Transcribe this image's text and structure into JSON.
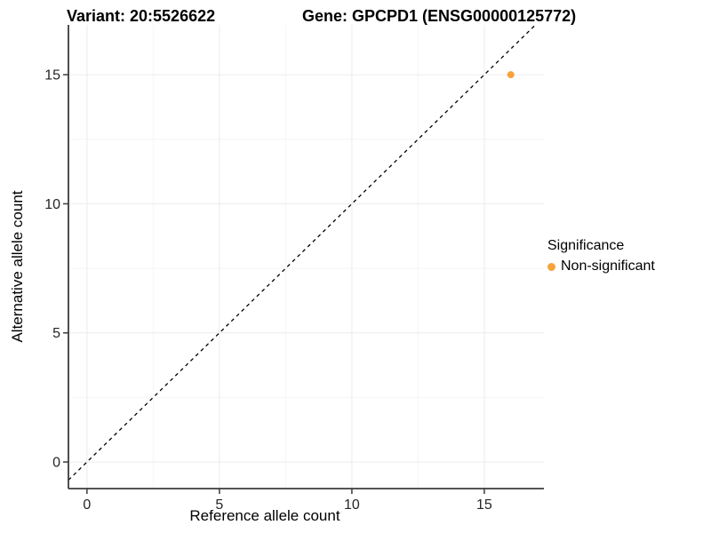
{
  "chart_data": {
    "type": "scatter",
    "title_left": "Variant: 20:5526622",
    "title_right": "Gene: GPCPD1 (ENSG00000125772)",
    "xlabel": "Reference allele count",
    "ylabel": "Alternative allele count",
    "xticks": [
      0,
      5,
      10,
      15
    ],
    "yticks": [
      0,
      5,
      10,
      15
    ],
    "x_minor_ticks": [
      2.5,
      7.5,
      12.5
    ],
    "y_minor_ticks": [
      2.5,
      7.5,
      12.5
    ],
    "xlim": [
      -0.7,
      17.25
    ],
    "ylim": [
      -1.03,
      16.93
    ],
    "grid": "major+minor",
    "legend_position": "right",
    "reference_line": {
      "equation": "y = x",
      "style": "dashed",
      "color": "#000000"
    },
    "series": [
      {
        "name": "Non-significant",
        "color": "#F9A13B",
        "points": [
          [
            16,
            15
          ]
        ]
      }
    ],
    "legend": {
      "title": "Significance",
      "items": [
        {
          "label": "Non-significant",
          "color": "#F9A13B"
        }
      ]
    }
  },
  "colors": {
    "background": "#FFFFFF",
    "grid_major": "#EBEBEB",
    "grid_minor": "#F5F5F5",
    "axis_line": "#3B3B3B",
    "tick_text": "#262626",
    "title_text": "#000000"
  }
}
